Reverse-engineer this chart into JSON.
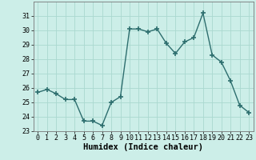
{
  "x": [
    0,
    1,
    2,
    3,
    4,
    5,
    6,
    7,
    8,
    9,
    10,
    11,
    12,
    13,
    14,
    15,
    16,
    17,
    18,
    19,
    20,
    21,
    22,
    23
  ],
  "y": [
    25.7,
    25.9,
    25.6,
    25.2,
    25.2,
    23.7,
    23.7,
    23.4,
    25.0,
    25.4,
    30.1,
    30.1,
    29.9,
    30.1,
    29.1,
    28.4,
    29.2,
    29.5,
    31.2,
    28.3,
    27.8,
    26.5,
    24.8,
    24.3
  ],
  "line_color": "#2d6e6e",
  "marker": "+",
  "markersize": 4,
  "linewidth": 1.0,
  "xlabel": "Humidex (Indice chaleur)",
  "ylim": [
    23,
    32
  ],
  "yticks": [
    23,
    24,
    25,
    26,
    27,
    28,
    29,
    30,
    31
  ],
  "xticks": [
    0,
    1,
    2,
    3,
    4,
    5,
    6,
    7,
    8,
    9,
    10,
    11,
    12,
    13,
    14,
    15,
    16,
    17,
    18,
    19,
    20,
    21,
    22,
    23
  ],
  "bg_color": "#cceee8",
  "grid_color": "#aad8d0",
  "xlabel_fontsize": 7.5,
  "tick_fontsize": 6.0
}
